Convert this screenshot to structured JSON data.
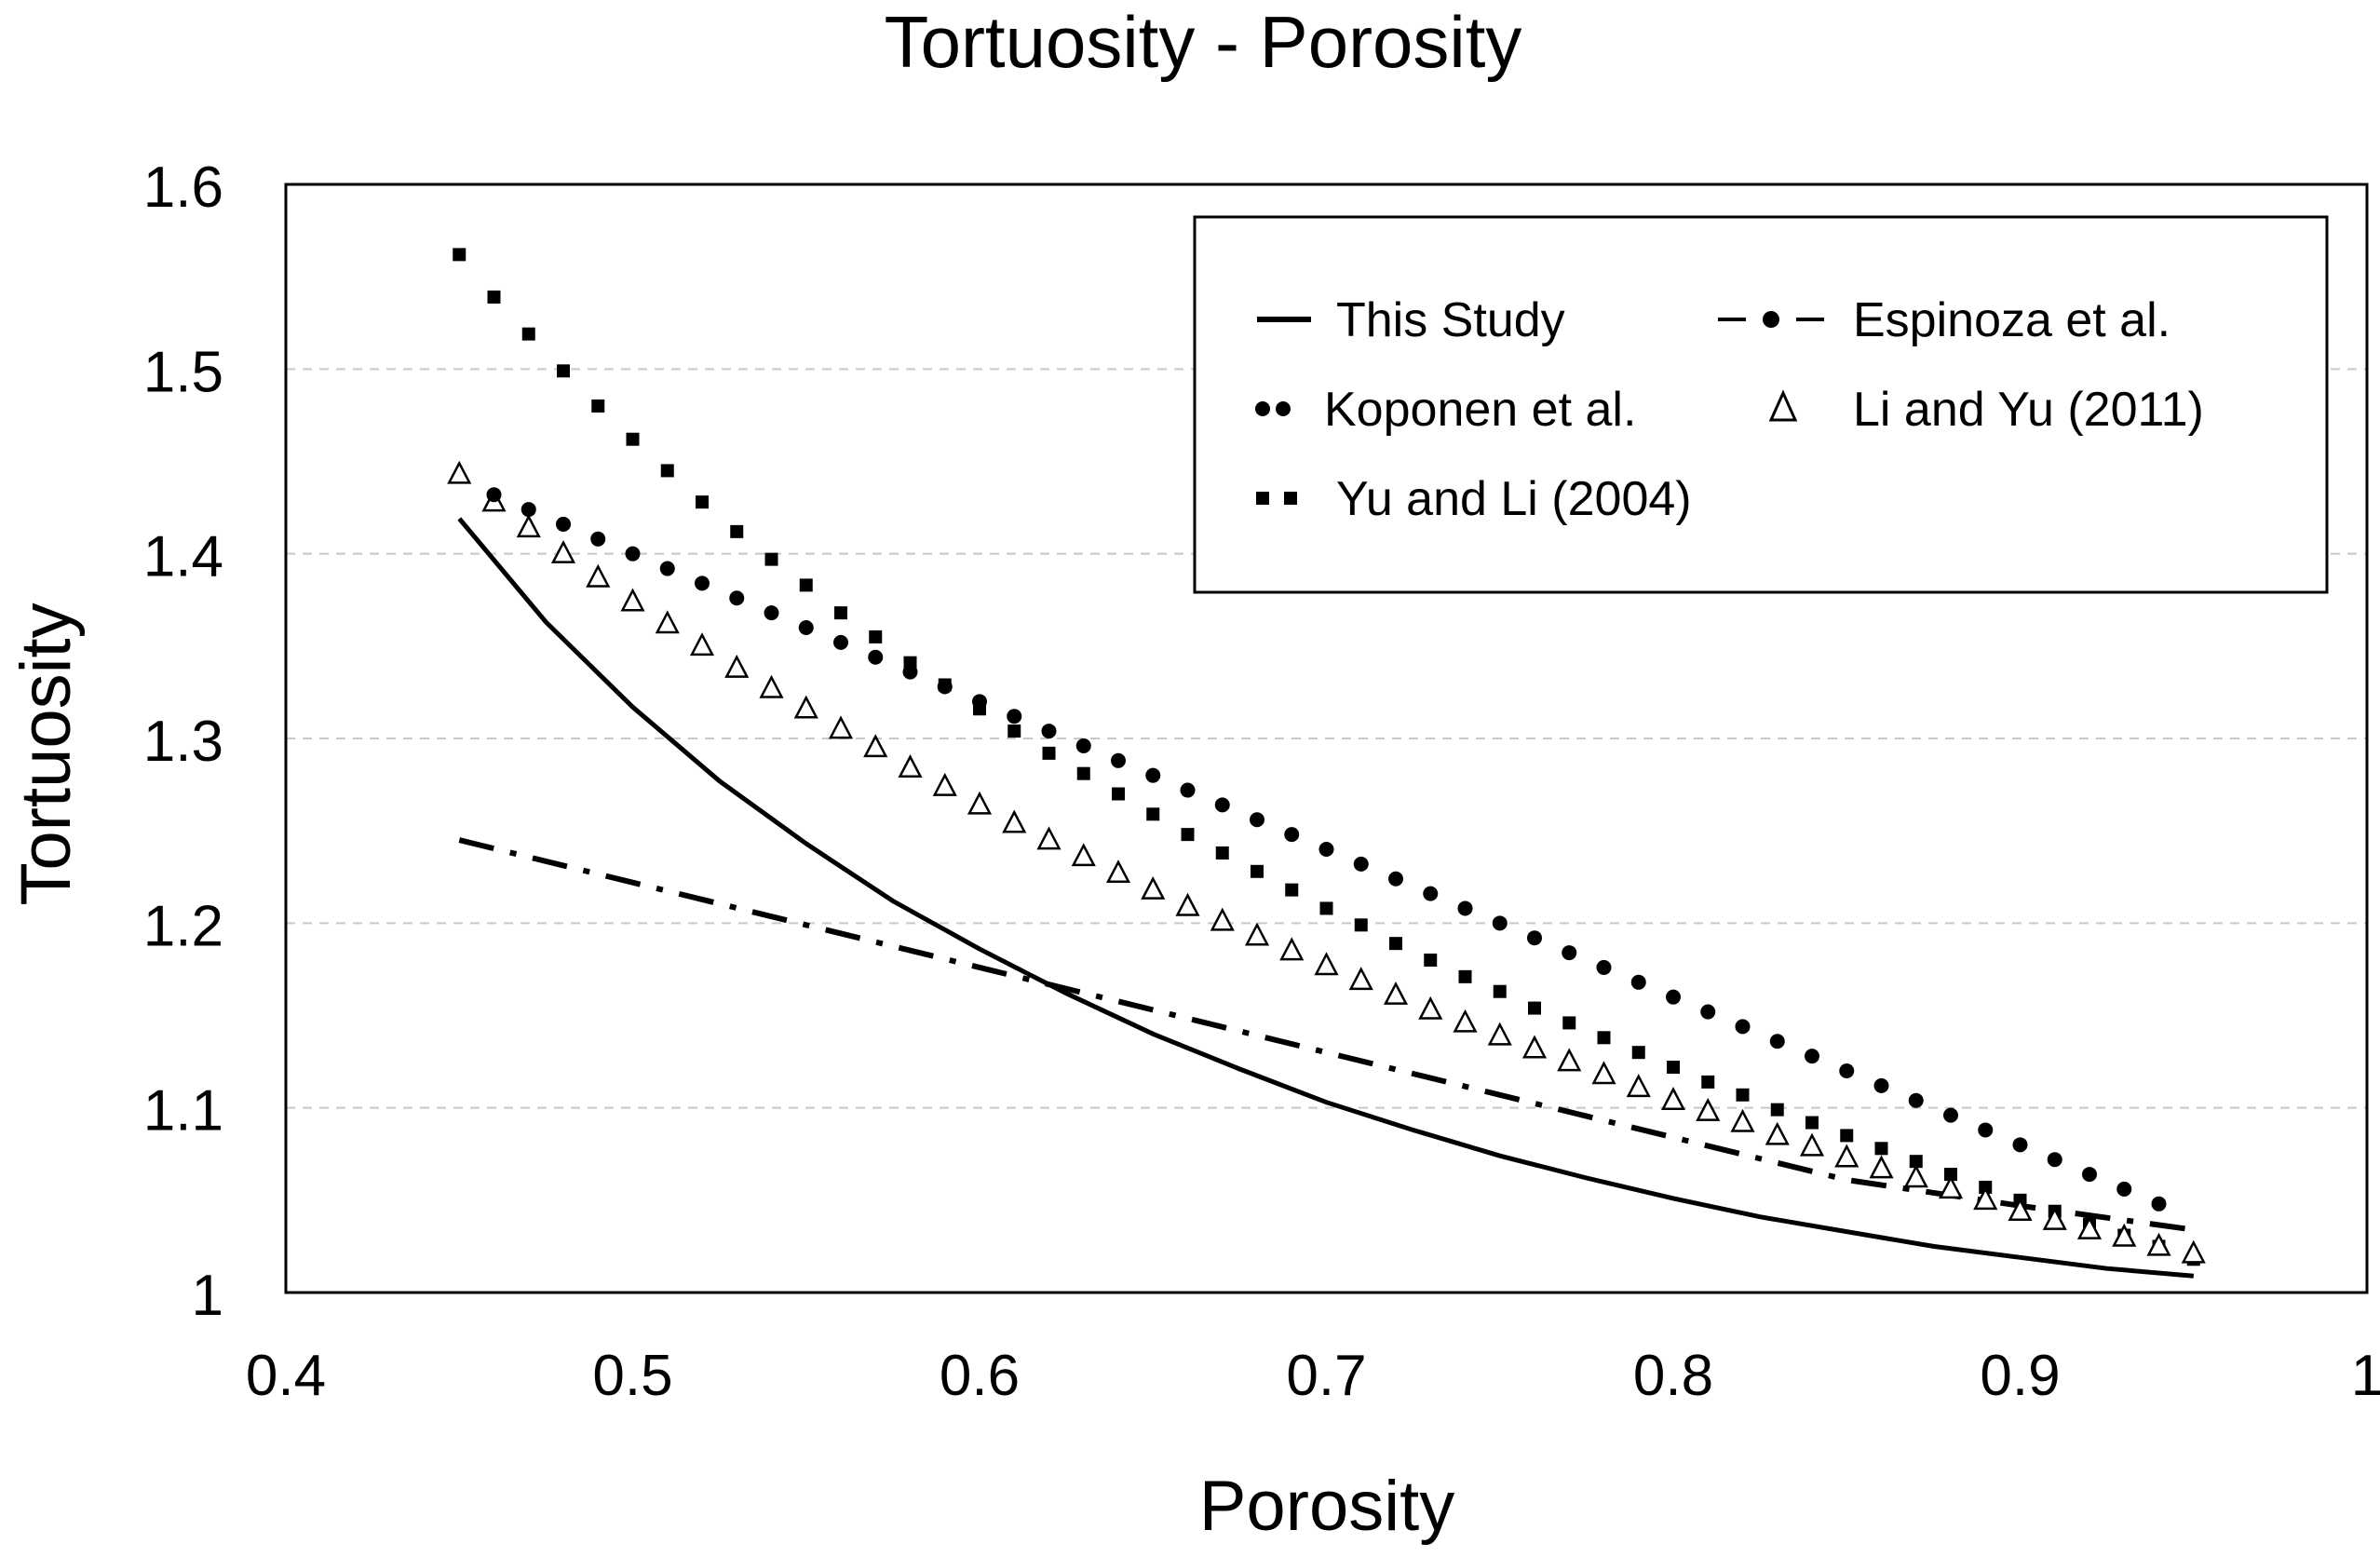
{
  "chart_data": {
    "type": "line",
    "title": "Tortuosity - Porosity",
    "xlabel": "Porosity",
    "ylabel": "Tortuosity",
    "xlim": [
      0.4,
      1
    ],
    "ylim": [
      1,
      1.6
    ],
    "xticks": [
      0.4,
      0.5,
      0.6,
      0.7,
      0.8,
      0.9,
      1
    ],
    "xtick_labels": [
      "0.4",
      "0.5",
      "0.6",
      "0.7",
      "0.8",
      "0.9",
      "1"
    ],
    "yticks": [
      1,
      1.1,
      1.2,
      1.3,
      1.4,
      1.5,
      1.6
    ],
    "ytick_labels": [
      "1",
      "1.1",
      "1.2",
      "1.3",
      "1.4",
      "1.5",
      "1.6"
    ],
    "grid": "horizontal-dashed",
    "legend_position": "top-right",
    "series": [
      {
        "name": "This Study",
        "style": "solid-line",
        "x": [
          0.45,
          0.475,
          0.5,
          0.525,
          0.55,
          0.575,
          0.6,
          0.625,
          0.65,
          0.675,
          0.7,
          0.725,
          0.75,
          0.775,
          0.8,
          0.825,
          0.85,
          0.875,
          0.9,
          0.925,
          0.95
        ],
        "y": [
          1.419,
          1.363,
          1.317,
          1.277,
          1.243,
          1.212,
          1.186,
          1.162,
          1.14,
          1.121,
          1.103,
          1.088,
          1.074,
          1.062,
          1.051,
          1.041,
          1.033,
          1.025,
          1.019,
          1.013,
          1.009
        ]
      },
      {
        "name": "Espinoza et al.",
        "style": "dash-dot-line",
        "x": [
          0.45,
          0.5,
          0.55,
          0.6,
          0.65,
          0.7,
          0.75,
          0.8,
          0.85,
          0.9,
          0.95
        ],
        "y": [
          1.245,
          1.222,
          1.199,
          1.176,
          1.153,
          1.13,
          1.107,
          1.084,
          1.061,
          1.047,
          1.034
        ]
      },
      {
        "name": "Koponen et al.",
        "style": "circle-markers",
        "x": [
          0.46,
          0.47,
          0.48,
          0.49,
          0.5,
          0.51,
          0.52,
          0.53,
          0.54,
          0.55,
          0.56,
          0.57,
          0.58,
          0.59,
          0.6,
          0.61,
          0.62,
          0.63,
          0.64,
          0.65,
          0.66,
          0.67,
          0.68,
          0.69,
          0.7,
          0.71,
          0.72,
          0.73,
          0.74,
          0.75,
          0.76,
          0.77,
          0.78,
          0.79,
          0.8,
          0.81,
          0.82,
          0.83,
          0.84,
          0.85,
          0.86,
          0.87,
          0.88,
          0.89,
          0.9,
          0.91,
          0.92,
          0.93,
          0.94
        ],
        "y": [
          1.432,
          1.424,
          1.416,
          1.408,
          1.4,
          1.392,
          1.384,
          1.376,
          1.368,
          1.36,
          1.352,
          1.344,
          1.336,
          1.328,
          1.32,
          1.312,
          1.304,
          1.296,
          1.288,
          1.28,
          1.272,
          1.264,
          1.256,
          1.248,
          1.24,
          1.232,
          1.224,
          1.216,
          1.208,
          1.2,
          1.192,
          1.184,
          1.176,
          1.168,
          1.16,
          1.152,
          1.144,
          1.136,
          1.128,
          1.12,
          1.112,
          1.104,
          1.096,
          1.088,
          1.08,
          1.072,
          1.064,
          1.056,
          1.048
        ]
      },
      {
        "name": "Li and Yu (2011)",
        "style": "triangle-markers",
        "x": [
          0.45,
          0.46,
          0.47,
          0.48,
          0.49,
          0.5,
          0.51,
          0.52,
          0.53,
          0.54,
          0.55,
          0.56,
          0.57,
          0.58,
          0.59,
          0.6,
          0.61,
          0.62,
          0.63,
          0.64,
          0.65,
          0.66,
          0.67,
          0.68,
          0.69,
          0.7,
          0.71,
          0.72,
          0.73,
          0.74,
          0.75,
          0.76,
          0.77,
          0.78,
          0.79,
          0.8,
          0.81,
          0.82,
          0.83,
          0.84,
          0.85,
          0.86,
          0.87,
          0.88,
          0.89,
          0.9,
          0.91,
          0.92,
          0.93,
          0.94,
          0.95
        ],
        "y": [
          1.443,
          1.428,
          1.414,
          1.4,
          1.387,
          1.374,
          1.362,
          1.35,
          1.338,
          1.327,
          1.316,
          1.305,
          1.295,
          1.284,
          1.274,
          1.264,
          1.254,
          1.245,
          1.236,
          1.227,
          1.218,
          1.209,
          1.201,
          1.193,
          1.185,
          1.177,
          1.169,
          1.161,
          1.153,
          1.146,
          1.139,
          1.132,
          1.125,
          1.118,
          1.111,
          1.104,
          1.098,
          1.092,
          1.085,
          1.079,
          1.073,
          1.067,
          1.062,
          1.056,
          1.05,
          1.044,
          1.039,
          1.034,
          1.03,
          1.025,
          1.021
        ]
      },
      {
        "name": "Yu and Li (2004)",
        "style": "square-markers",
        "x": [
          0.45,
          0.46,
          0.47,
          0.48,
          0.49,
          0.5,
          0.51,
          0.52,
          0.53,
          0.54,
          0.55,
          0.56,
          0.57,
          0.58,
          0.59,
          0.6,
          0.61,
          0.62,
          0.63,
          0.64,
          0.65,
          0.66,
          0.67,
          0.68,
          0.69,
          0.7,
          0.71,
          0.72,
          0.73,
          0.74,
          0.75,
          0.76,
          0.77,
          0.78,
          0.79,
          0.8,
          0.81,
          0.82,
          0.83,
          0.84,
          0.85,
          0.86,
          0.87,
          0.88,
          0.89,
          0.9,
          0.91,
          0.92,
          0.93,
          0.94,
          0.95
        ],
        "y": [
          1.562,
          1.539,
          1.519,
          1.499,
          1.48,
          1.462,
          1.445,
          1.428,
          1.412,
          1.397,
          1.383,
          1.368,
          1.355,
          1.341,
          1.329,
          1.316,
          1.304,
          1.292,
          1.281,
          1.27,
          1.259,
          1.248,
          1.238,
          1.228,
          1.218,
          1.208,
          1.199,
          1.189,
          1.18,
          1.171,
          1.163,
          1.154,
          1.146,
          1.138,
          1.13,
          1.122,
          1.114,
          1.107,
          1.099,
          1.092,
          1.085,
          1.078,
          1.071,
          1.064,
          1.057,
          1.05,
          1.044,
          1.037,
          1.031,
          1.025,
          1.018
        ]
      }
    ]
  }
}
